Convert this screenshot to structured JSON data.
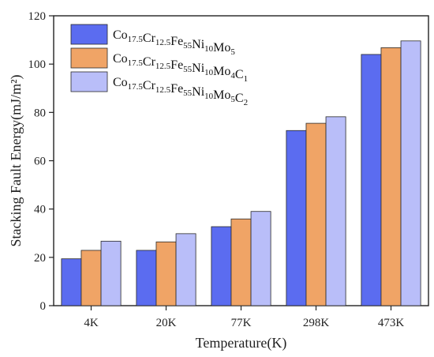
{
  "chart_data": {
    "type": "bar",
    "title": "",
    "xlabel": "Temperature(K)",
    "ylabel": "Stacking Fault Energy(mJ/m²)",
    "ylim": [
      0,
      120
    ],
    "yticks": [
      "0",
      "20",
      "40",
      "60",
      "80",
      "100",
      "120"
    ],
    "categories": [
      "4K",
      "20K",
      "77K",
      "298K",
      "473K"
    ],
    "grid": false,
    "legend_position": "top-left",
    "series": [
      {
        "name": "Co17.5Cr12.5Fe55Ni10Mo5",
        "name_parts": [
          {
            "t": "Co",
            "sub": false
          },
          {
            "t": "17.5",
            "sub": true
          },
          {
            "t": "Cr",
            "sub": false
          },
          {
            "t": "12.5",
            "sub": true
          },
          {
            "t": "Fe",
            "sub": false
          },
          {
            "t": "55",
            "sub": true
          },
          {
            "t": "Ni",
            "sub": false
          },
          {
            "t": "10",
            "sub": true
          },
          {
            "t": "Mo",
            "sub": false
          },
          {
            "t": "5",
            "sub": true
          }
        ],
        "color": "#5B6CF0",
        "values": [
          19.4,
          22.9,
          32.7,
          72.5,
          104.0
        ]
      },
      {
        "name": "Co17.5Cr12.5Fe55Ni10Mo4C1",
        "name_parts": [
          {
            "t": "Co",
            "sub": false
          },
          {
            "t": "17.5",
            "sub": true
          },
          {
            "t": "Cr",
            "sub": false
          },
          {
            "t": "12.5",
            "sub": true
          },
          {
            "t": "Fe",
            "sub": false
          },
          {
            "t": "55",
            "sub": true
          },
          {
            "t": "Ni",
            "sub": false
          },
          {
            "t": "10",
            "sub": true
          },
          {
            "t": "Mo",
            "sub": false
          },
          {
            "t": "4",
            "sub": true
          },
          {
            "t": "C",
            "sub": false
          },
          {
            "t": "1",
            "sub": true
          }
        ],
        "color": "#F0A466",
        "values": [
          22.9,
          26.4,
          35.9,
          75.5,
          106.8
        ]
      },
      {
        "name": "Co17.5Cr12.5Fe55Ni10Mo5C2",
        "name_parts": [
          {
            "t": "Co",
            "sub": false
          },
          {
            "t": "17.5",
            "sub": true
          },
          {
            "t": "Cr",
            "sub": false
          },
          {
            "t": "12.5",
            "sub": true
          },
          {
            "t": "Fe",
            "sub": false
          },
          {
            "t": "55",
            "sub": true
          },
          {
            "t": "Ni",
            "sub": false
          },
          {
            "t": "10",
            "sub": true
          },
          {
            "t": "Mo",
            "sub": false
          },
          {
            "t": "5",
            "sub": true
          },
          {
            "t": "C",
            "sub": false
          },
          {
            "t": "2",
            "sub": true
          }
        ],
        "color": "#B9BEF9",
        "values": [
          26.7,
          29.8,
          39.0,
          78.2,
          109.6
        ]
      }
    ]
  }
}
